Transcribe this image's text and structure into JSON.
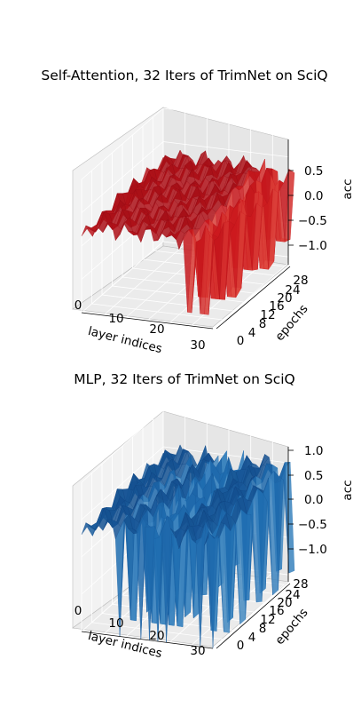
{
  "chart_data": [
    {
      "type": "surface3d",
      "title": "Self-Attention, 32 Iters of TrimNet on SciQ",
      "xlabel": "layer indices",
      "ylabel": "epochs",
      "zlabel": "acc",
      "x_ticks": [
        "0",
        "10",
        "20",
        "30"
      ],
      "y_ticks": [
        "0",
        "4",
        "8",
        "12",
        "16",
        "20",
        "24",
        "28"
      ],
      "z_ticks": [
        "−1.0",
        "−0.5",
        "0.0",
        "0.5"
      ],
      "xlim": [
        0,
        31
      ],
      "ylim": [
        0,
        31
      ],
      "zlim": [
        -1.0,
        1.0
      ],
      "colormap": "Reds",
      "colors": {
        "dark": "#67000d",
        "mid": "#cb181d",
        "light": "#fc9272"
      },
      "approx_surface": {
        "baseline_acc": 0.3,
        "deep_drops_to": -0.8,
        "drop_layers": [
          25,
          26,
          28,
          29,
          30
        ]
      }
    },
    {
      "type": "surface3d",
      "title": "MLP, 32 Iters of TrimNet on SciQ",
      "xlabel": "layer indices",
      "ylabel": "epochs",
      "zlabel": "acc",
      "x_ticks": [
        "0",
        "10",
        "20",
        "30"
      ],
      "y_ticks": [
        "0",
        "4",
        "8",
        "12",
        "16",
        "20",
        "24",
        "28"
      ],
      "z_ticks": [
        "−1.0",
        "−0.5",
        "0.0",
        "0.5",
        "1.0"
      ],
      "xlim": [
        0,
        31
      ],
      "ylim": [
        0,
        31
      ],
      "zlim": [
        -1.0,
        1.0
      ],
      "colormap": "Blues",
      "colors": {
        "dark": "#08306b",
        "mid": "#2171b5",
        "light": "#9ecae1"
      },
      "approx_surface": {
        "baseline_acc": 0.45,
        "deep_drops_to": -1.0,
        "drop_layers": [
          9,
          14,
          16,
          18,
          20,
          28,
          31
        ]
      }
    }
  ]
}
